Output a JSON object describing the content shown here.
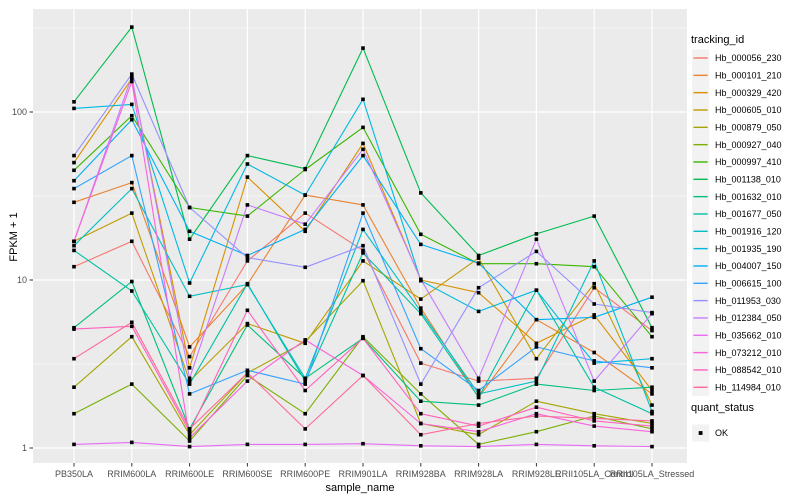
{
  "chart_data": {
    "type": "line",
    "title": "",
    "xlabel": "sample_name",
    "ylabel": "FPKM + 1",
    "y_scale": "log10",
    "y_axis_ticks": [
      "1",
      "10",
      "100"
    ],
    "ylim": [
      0.8,
      410
    ],
    "grid": true,
    "legend": {
      "title": "tracking_id",
      "position": "right"
    },
    "legend_quant": {
      "title": "quant_status",
      "items": [
        {
          "label": "OK",
          "marker": "black-square"
        }
      ]
    },
    "colors": {
      "panel_bg": "#EBEBEB",
      "grid": "#FFFFFF",
      "point": "#000000",
      "axis_text": "#4D4D4D",
      "tick_mark": "#333333",
      "title_text": "#000000",
      "legend_key_bg": "#F2F2F2"
    },
    "categories": [
      "PB350LA",
      "RRIM600LA",
      "RRIM600LE",
      "RRIM600SE",
      "RRIM600PE",
      "RRIM901LA",
      "RRIM928BA",
      "RRIM928LA",
      "RRIM928LE",
      "RRII105LA_Control",
      "RRII105LA_Stressed"
    ],
    "series": [
      {
        "name": "Hb_000056_230",
        "color": "#F8766D",
        "quant_status": "OK",
        "values": [
          12,
          17,
          3.5,
          13,
          25,
          15,
          3.2,
          2.5,
          2.6,
          9,
          5
        ]
      },
      {
        "name": "Hb_000101_210",
        "color": "#EA8331",
        "quant_status": "OK",
        "values": [
          29,
          38,
          4,
          9.4,
          32,
          28,
          6.8,
          2,
          5.8,
          3.7,
          2.1
        ]
      },
      {
        "name": "Hb_000329_420",
        "color": "#D89000",
        "quant_status": "OK",
        "values": [
          50,
          158,
          3,
          41,
          19.5,
          65,
          10,
          8.4,
          4.2,
          6.2,
          2.2
        ]
      },
      {
        "name": "Hb_000605_010",
        "color": "#C09B00",
        "quant_status": "OK",
        "values": [
          17,
          25,
          2.5,
          5.5,
          4.2,
          13,
          7.7,
          13.5,
          3.4,
          9.5,
          1.8
        ]
      },
      {
        "name": "Hb_000879_050",
        "color": "#A3A500",
        "quant_status": "OK",
        "values": [
          2.3,
          4.6,
          1.2,
          2.8,
          4.3,
          9.9,
          1.4,
          1.2,
          1.9,
          1.6,
          1.4
        ]
      },
      {
        "name": "Hb_000927_040",
        "color": "#7CAE00",
        "quant_status": "OK",
        "values": [
          1.6,
          2.4,
          1.1,
          2.7,
          1.6,
          4.6,
          2.1,
          1.05,
          1.25,
          1.55,
          1.3
        ]
      },
      {
        "name": "Hb_000997_410",
        "color": "#39B600",
        "quant_status": "OK",
        "values": [
          45,
          95,
          27,
          24,
          45.5,
          81,
          18.7,
          12.5,
          12.5,
          12,
          4.6
        ]
      },
      {
        "name": "Hb_001138_010",
        "color": "#00BB4E",
        "quant_status": "OK",
        "values": [
          115,
          320,
          17.5,
          55,
          46,
          240,
          33,
          14,
          18.8,
          24,
          5.2
        ]
      },
      {
        "name": "Hb_001632_010",
        "color": "#00BF7D",
        "quant_status": "OK",
        "values": [
          5.2,
          9.8,
          1.3,
          5.4,
          2.6,
          4.5,
          1.9,
          1.8,
          2.4,
          2.2,
          2.3
        ]
      },
      {
        "name": "Hb_001677_050",
        "color": "#00C1A3",
        "quant_status": "OK",
        "values": [
          15,
          8.6,
          2.4,
          9.5,
          2.5,
          14.5,
          6.3,
          2,
          8.7,
          2.3,
          1.6
        ]
      },
      {
        "name": "Hb_001916_120",
        "color": "#00BFC4",
        "quant_status": "OK",
        "values": [
          16,
          35,
          8,
          9.4,
          2.6,
          20,
          6.5,
          2.1,
          2.5,
          13,
          1.65
        ]
      },
      {
        "name": "Hb_001935_190",
        "color": "#00BAE0",
        "quant_status": "OK",
        "values": [
          105,
          111,
          9.6,
          49,
          32,
          119,
          9.9,
          6.5,
          8.7,
          3.2,
          3.4
        ]
      },
      {
        "name": "Hb_004007_150",
        "color": "#00B0F6",
        "quant_status": "OK",
        "values": [
          39,
          90,
          19.5,
          14,
          20,
          55,
          16.3,
          12.6,
          5.8,
          6,
          7.9
        ]
      },
      {
        "name": "Hb_006615_100",
        "color": "#35A2FF",
        "quant_status": "OK",
        "values": [
          35,
          55,
          2.1,
          2.9,
          2.4,
          25,
          3.9,
          2.2,
          4,
          3.3,
          3
        ]
      },
      {
        "name": "Hb_011953_030",
        "color": "#9590FF",
        "quant_status": "OK",
        "values": [
          55,
          168,
          27,
          13.6,
          11.9,
          16,
          2.4,
          9,
          14.8,
          7.2,
          6.4
        ]
      },
      {
        "name": "Hb_012384_050",
        "color": "#C77CFF",
        "quant_status": "OK",
        "values": [
          17,
          163,
          2.6,
          28,
          21.5,
          60,
          10.1,
          2.6,
          17.5,
          2.5,
          6.3
        ]
      },
      {
        "name": "Hb_035662_010",
        "color": "#E76BF3",
        "quant_status": "OK",
        "values": [
          1.05,
          1.08,
          1.02,
          1.05,
          1.05,
          1.06,
          1.03,
          1.02,
          1.05,
          1.03,
          1.02
        ]
      },
      {
        "name": "Hb_073212_010",
        "color": "#FA62DB",
        "quant_status": "OK",
        "values": [
          17,
          152,
          1.15,
          2.5,
          4.4,
          2.7,
          1.4,
          1.25,
          1.6,
          1.35,
          1.25
        ]
      },
      {
        "name": "Hb_088542_010",
        "color": "#FF62BC",
        "quant_status": "OK",
        "values": [
          5.1,
          5.3,
          1.25,
          6.6,
          2.2,
          4.5,
          1.6,
          1.35,
          1.75,
          1.45,
          1.35
        ]
      },
      {
        "name": "Hb_114984_010",
        "color": "#FF6A98",
        "quant_status": "OK",
        "values": [
          3.4,
          5.6,
          1.3,
          2.8,
          1.3,
          2.7,
          1.2,
          1.4,
          1.55,
          1.5,
          1.45
        ]
      }
    ]
  }
}
